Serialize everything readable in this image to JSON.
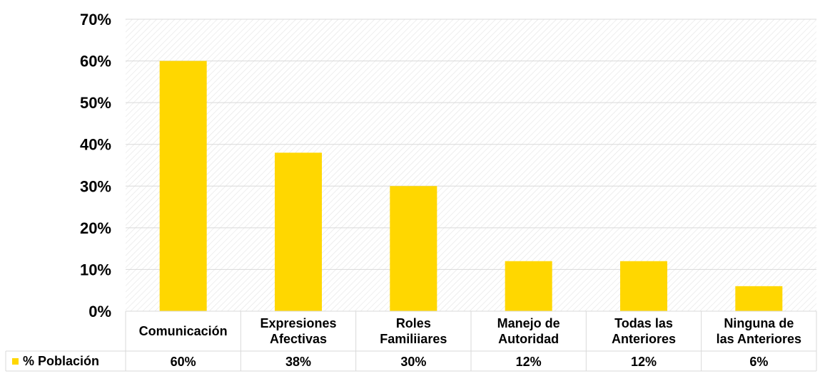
{
  "chart_data": {
    "type": "bar",
    "categories": [
      [
        "Comunicación"
      ],
      [
        "Expresiones",
        "Afectivas"
      ],
      [
        "Roles",
        "Familiiares"
      ],
      [
        "Manejo de",
        "Autoridad"
      ],
      [
        "Todas las",
        "Anteriores"
      ],
      [
        "Ninguna de",
        "las Anteriores"
      ]
    ],
    "series": [
      {
        "name": "% Población",
        "values": [
          60,
          38,
          30,
          12,
          12,
          6
        ],
        "labels": [
          "60%",
          "38%",
          "30%",
          "12%",
          "12%",
          "6%"
        ],
        "color": "#FFD700"
      }
    ],
    "ylim": [
      0,
      70
    ],
    "yticks": [
      "0%",
      "10%",
      "20%",
      "30%",
      "40%",
      "50%",
      "60%",
      "70%"
    ],
    "grid": true,
    "plot_area_pattern": "diagonal-hatch",
    "legend": "data-table-row",
    "title": "",
    "xlabel": "",
    "ylabel": ""
  }
}
